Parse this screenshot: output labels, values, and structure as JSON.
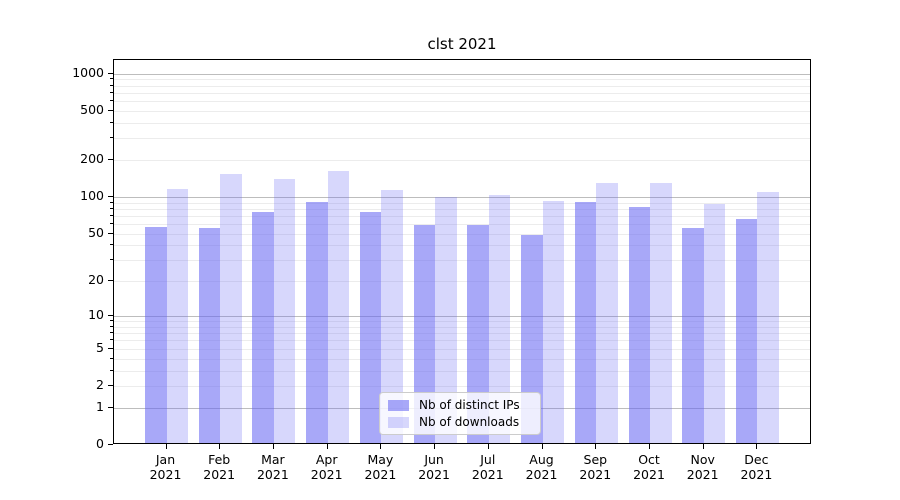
{
  "title": "clst 2021",
  "chart_data": {
    "type": "bar",
    "title": "clst 2021",
    "x_months": [
      "Jan",
      "Feb",
      "Mar",
      "Apr",
      "May",
      "Jun",
      "Jul",
      "Aug",
      "Sep",
      "Oct",
      "Nov",
      "Dec"
    ],
    "x_year": "2021",
    "series": [
      {
        "name": "Nb of distinct IPs",
        "color": "rgba(100,100,242,0.56)",
        "values": [
          55,
          54,
          73,
          87,
          72,
          57,
          57,
          47,
          88,
          79,
          54,
          64
        ]
      },
      {
        "name": "Nb of downloads",
        "color": "rgba(100,100,242,0.26)",
        "values": [
          112,
          149,
          134,
          157,
          110,
          97,
          100,
          90,
          125,
          126,
          84,
          106
        ]
      }
    ],
    "yscale": "log1p",
    "ylim": [
      0,
      1290
    ],
    "y_ticks": [
      0,
      1,
      2,
      5,
      10,
      20,
      50,
      100,
      200,
      500,
      1000
    ],
    "y_minor_ticks": [
      3,
      4,
      6,
      7,
      8,
      9,
      30,
      40,
      60,
      70,
      80,
      90,
      300,
      400,
      600,
      700,
      800,
      900
    ],
    "grid": true,
    "legend_position": "lower center",
    "colors": {
      "major_grid": "#bdbdbd",
      "minor_grid": "#ececec",
      "axis": "#000000",
      "legend_border": "#cccccc",
      "legend_bg": "rgba(255,255,255,0.8)"
    }
  }
}
